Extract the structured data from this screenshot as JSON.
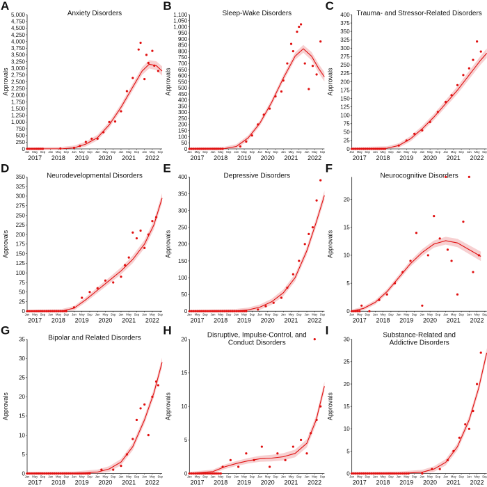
{
  "figure": {
    "month_labels": [
      "Jan",
      "May",
      "Sep"
    ],
    "colors": {
      "points": "#e01010",
      "trend": "#e01010",
      "band": "#e8787a",
      "axis": "#222222"
    }
  },
  "chart_data": [
    {
      "panel": "A",
      "type": "scatter",
      "title": "Anxiety Disorders",
      "ylabel": "Approvals",
      "ylim": [
        0,
        5000
      ],
      "yticks": [
        "0",
        "250",
        "500",
        "750",
        "1,000",
        "1,250",
        "1,500",
        "1,750",
        "2,000",
        "2,250",
        "2,500",
        "2,750",
        "3,000",
        "3,250",
        "3,500",
        "3,750",
        "4,000",
        "4,250",
        "4,500",
        "4,750",
        "5,000"
      ],
      "years": [
        "2017",
        "2018",
        "2019",
        "2020",
        "2021",
        "2022"
      ],
      "x": [
        "2017-09",
        "2018-06",
        "2019-01",
        "2019-04",
        "2019-07",
        "2019-10",
        "2020-01",
        "2020-04",
        "2020-07",
        "2020-10",
        "2021-01",
        "2021-04",
        "2021-07",
        "2021-10",
        "2021-11",
        "2022-01",
        "2022-02",
        "2022-03",
        "2022-05",
        "2022-06",
        "2022-08"
      ],
      "y": [
        0,
        10,
        40,
        110,
        260,
        380,
        380,
        620,
        1000,
        1020,
        1400,
        2150,
        2640,
        3700,
        3950,
        2600,
        3500,
        3200,
        3650,
        3100,
        2900
      ],
      "trend": [
        [
          2017.0,
          0
        ],
        [
          2018.5,
          5
        ],
        [
          2019.0,
          40
        ],
        [
          2019.5,
          180
        ],
        [
          2020.0,
          420
        ],
        [
          2020.5,
          900
        ],
        [
          2021.0,
          1550
        ],
        [
          2021.5,
          2300
        ],
        [
          2021.9,
          2900
        ],
        [
          2022.2,
          3150
        ],
        [
          2022.5,
          3100
        ],
        [
          2022.75,
          2900
        ]
      ]
    },
    {
      "panel": "B",
      "type": "scatter",
      "title": "Sleep-Wake Disorders",
      "ylabel": "Approvals",
      "ylim": [
        0,
        1100
      ],
      "yticks": [
        "0",
        "50",
        "100",
        "150",
        "200",
        "250",
        "300",
        "350",
        "400",
        "450",
        "500",
        "550",
        "600",
        "650",
        "700",
        "750",
        "800",
        "850",
        "900",
        "950",
        "1,000",
        "1,050",
        "1,100"
      ],
      "years": [
        "2017",
        "2018",
        "2019",
        "2020",
        "2021",
        "2022"
      ],
      "x": [
        "2018-06",
        "2019-03",
        "2019-06",
        "2019-09",
        "2019-12",
        "2020-03",
        "2020-06",
        "2020-09",
        "2020-12",
        "2021-01",
        "2021-03",
        "2021-05",
        "2021-06",
        "2021-08",
        "2021-09",
        "2021-10",
        "2021-12",
        "2022-02",
        "2022-04",
        "2022-06",
        "2022-08"
      ],
      "y": [
        0,
        20,
        60,
        110,
        200,
        280,
        330,
        430,
        470,
        560,
        700,
        860,
        800,
        960,
        1000,
        1020,
        700,
        490,
        680,
        610,
        880
      ],
      "trend": [
        [
          2017.0,
          0
        ],
        [
          2018.5,
          2
        ],
        [
          2019.0,
          20
        ],
        [
          2019.5,
          90
        ],
        [
          2020.0,
          210
        ],
        [
          2020.5,
          380
        ],
        [
          2021.0,
          580
        ],
        [
          2021.5,
          760
        ],
        [
          2021.85,
          820
        ],
        [
          2022.2,
          760
        ],
        [
          2022.5,
          660
        ],
        [
          2022.75,
          590
        ]
      ]
    },
    {
      "panel": "C",
      "type": "scatter",
      "title": "Trauma- and Stressor-Related Disorders",
      "ylabel": "Approvals",
      "ylim": [
        0,
        400
      ],
      "yticks": [
        "0",
        "25",
        "50",
        "75",
        "100",
        "125",
        "150",
        "175",
        "200",
        "225",
        "250",
        "275",
        "300",
        "325",
        "350",
        "375",
        "400"
      ],
      "years": [
        "2017",
        "2018",
        "2019",
        "2020",
        "2021",
        "2022"
      ],
      "x": [
        "2018-06",
        "2019-01",
        "2019-05",
        "2019-09",
        "2020-01",
        "2020-05",
        "2020-09",
        "2021-01",
        "2021-04",
        "2021-07",
        "2021-10",
        "2022-01",
        "2022-03",
        "2022-05",
        "2022-07"
      ],
      "y": [
        0,
        10,
        25,
        45,
        55,
        80,
        110,
        140,
        160,
        190,
        220,
        240,
        265,
        320,
        290
      ],
      "trend": [
        [
          2017.0,
          0
        ],
        [
          2018.5,
          2
        ],
        [
          2019.0,
          10
        ],
        [
          2019.5,
          30
        ],
        [
          2020.0,
          60
        ],
        [
          2020.5,
          95
        ],
        [
          2021.0,
          135
        ],
        [
          2021.5,
          175
        ],
        [
          2022.0,
          220
        ],
        [
          2022.5,
          265
        ],
        [
          2022.75,
          285
        ]
      ]
    },
    {
      "panel": "D",
      "type": "scatter",
      "title": "Neurodevelopmental Disorders",
      "ylabel": "Approvals",
      "ylim": [
        0,
        350
      ],
      "yticks": [
        "0",
        "25",
        "50",
        "75",
        "100",
        "125",
        "150",
        "175",
        "200",
        "225",
        "250",
        "275",
        "300",
        "325",
        "350"
      ],
      "years": [
        "2017",
        "2018",
        "2019",
        "2020",
        "2021",
        "2022"
      ],
      "x": [
        "2018-09",
        "2019-01",
        "2019-05",
        "2019-09",
        "2020-01",
        "2020-05",
        "2020-09",
        "2021-01",
        "2021-03",
        "2021-05",
        "2021-07",
        "2021-09",
        "2021-11",
        "2022-01",
        "2022-03",
        "2022-05",
        "2022-07"
      ],
      "y": [
        0,
        10,
        35,
        50,
        60,
        80,
        75,
        90,
        120,
        140,
        205,
        190,
        210,
        165,
        200,
        235,
        245
      ],
      "trend": [
        [
          2017.0,
          0
        ],
        [
          2018.5,
          1
        ],
        [
          2019.0,
          8
        ],
        [
          2019.5,
          30
        ],
        [
          2020.0,
          55
        ],
        [
          2020.5,
          80
        ],
        [
          2021.0,
          105
        ],
        [
          2021.5,
          135
        ],
        [
          2022.0,
          175
        ],
        [
          2022.4,
          225
        ],
        [
          2022.75,
          295
        ]
      ]
    },
    {
      "panel": "E",
      "type": "scatter",
      "title": "Depressive Disorders",
      "ylabel": "Approvals",
      "ylim": [
        0,
        400
      ],
      "yticks": [
        "0",
        "50",
        "100",
        "150",
        "200",
        "250",
        "300",
        "350",
        "400"
      ],
      "years": [
        "2017",
        "2018",
        "2019",
        "2020",
        "2021",
        "2022"
      ],
      "x": [
        "2019-06",
        "2019-12",
        "2020-04",
        "2020-08",
        "2020-12",
        "2021-03",
        "2021-06",
        "2021-09",
        "2021-12",
        "2022-02",
        "2022-04",
        "2022-06",
        "2022-08"
      ],
      "y": [
        0,
        5,
        15,
        25,
        40,
        70,
        110,
        150,
        200,
        230,
        250,
        330,
        390
      ],
      "trend": [
        [
          2017.0,
          0
        ],
        [
          2019.0,
          1
        ],
        [
          2019.5,
          4
        ],
        [
          2020.0,
          12
        ],
        [
          2020.5,
          28
        ],
        [
          2021.0,
          55
        ],
        [
          2021.5,
          100
        ],
        [
          2022.0,
          180
        ],
        [
          2022.4,
          265
        ],
        [
          2022.75,
          345
        ]
      ]
    },
    {
      "panel": "F",
      "type": "scatter",
      "title": "Neurocognitive Disorders",
      "ylabel": "Approvals",
      "ylim": [
        0,
        24
      ],
      "yticks": [
        "0",
        "5",
        "10",
        "15",
        "20"
      ],
      "years": [
        "2017",
        "2018",
        "2019",
        "2020",
        "2021",
        "2022"
      ],
      "x": [
        "2017-06",
        "2017-10",
        "2018-03",
        "2018-07",
        "2018-11",
        "2019-03",
        "2019-07",
        "2019-10",
        "2020-01",
        "2020-04",
        "2020-07",
        "2020-10",
        "2021-01",
        "2021-02",
        "2021-04",
        "2021-07",
        "2021-10",
        "2022-01",
        "2022-03",
        "2022-06"
      ],
      "y": [
        1,
        0,
        2,
        3,
        5,
        7,
        9,
        14,
        1,
        10,
        17,
        13,
        24,
        11,
        9,
        3,
        16,
        24,
        7,
        10
      ],
      "trend": [
        [
          2017.0,
          0
        ],
        [
          2017.5,
          0.5
        ],
        [
          2018.0,
          1.6
        ],
        [
          2018.5,
          3.5
        ],
        [
          2019.0,
          6
        ],
        [
          2019.5,
          8.5
        ],
        [
          2020.0,
          10.5
        ],
        [
          2020.5,
          12
        ],
        [
          2021.0,
          12.6
        ],
        [
          2021.5,
          12.2
        ],
        [
          2022.0,
          11
        ],
        [
          2022.5,
          9.8
        ]
      ]
    },
    {
      "panel": "G",
      "type": "scatter",
      "title": "Bipolar and Related Disorders",
      "ylabel": "Approvals",
      "ylim": [
        0,
        35
      ],
      "yticks": [
        "0",
        "5",
        "10",
        "15",
        "20",
        "25",
        "30",
        "35"
      ],
      "years": [
        "2017",
        "2018",
        "2019",
        "2020",
        "2021",
        "2022"
      ],
      "x": [
        "2019-09",
        "2020-03",
        "2020-09",
        "2021-01",
        "2021-04",
        "2021-07",
        "2021-09",
        "2021-11",
        "2022-01",
        "2022-03",
        "2022-05",
        "2022-07",
        "2022-08"
      ],
      "y": [
        0,
        1,
        1,
        2,
        5,
        9,
        14,
        17,
        18,
        10,
        20,
        24,
        23
      ],
      "trend": [
        [
          2017.0,
          0
        ],
        [
          2019.0,
          0
        ],
        [
          2020.0,
          0.4
        ],
        [
          2020.5,
          1.2
        ],
        [
          2021.0,
          3
        ],
        [
          2021.5,
          7
        ],
        [
          2022.0,
          14
        ],
        [
          2022.4,
          21
        ],
        [
          2022.75,
          29
        ]
      ]
    },
    {
      "panel": "H",
      "type": "scatter",
      "title": "Disruptive, Impulse-Control, and Conduct Disorders",
      "ylabel": "Approvals",
      "ylim": [
        0,
        20
      ],
      "yticks": [
        "0",
        "5",
        "10",
        "15",
        "20"
      ],
      "years": [
        "2017",
        "2018",
        "2019",
        "2020",
        "2021",
        "2022"
      ],
      "x": [
        "2018-06",
        "2018-10",
        "2019-02",
        "2019-06",
        "2019-10",
        "2020-02",
        "2020-06",
        "2020-10",
        "2021-02",
        "2021-06",
        "2021-10",
        "2022-01",
        "2022-03",
        "2022-05",
        "2022-06",
        "2022-08"
      ],
      "y": [
        1,
        2,
        1,
        3,
        2,
        4,
        1,
        3,
        2,
        4,
        5,
        3,
        6,
        20,
        8,
        10
      ],
      "trend": [
        [
          2017.0,
          0
        ],
        [
          2018.0,
          0.3
        ],
        [
          2018.5,
          1
        ],
        [
          2019.0,
          1.5
        ],
        [
          2019.5,
          1.9
        ],
        [
          2020.0,
          2.2
        ],
        [
          2020.5,
          2.3
        ],
        [
          2021.0,
          2.5
        ],
        [
          2021.5,
          3
        ],
        [
          2022.0,
          4.5
        ],
        [
          2022.4,
          8
        ],
        [
          2022.75,
          13
        ]
      ]
    },
    {
      "panel": "I",
      "type": "scatter",
      "title": "Substance-Related and Addictive Disorders",
      "ylabel": "Approvals",
      "ylim": [
        0,
        30
      ],
      "yticks": [
        "0",
        "5",
        "10",
        "15",
        "20",
        "25",
        "30"
      ],
      "years": [
        "2017",
        "2018",
        "2019",
        "2020",
        "2021",
        "2022"
      ],
      "x": [
        "2019-06",
        "2020-01",
        "2020-06",
        "2020-10",
        "2021-02",
        "2021-05",
        "2021-08",
        "2021-11",
        "2022-01",
        "2022-03",
        "2022-05",
        "2022-07"
      ],
      "y": [
        0,
        0,
        1,
        1,
        3,
        5,
        8,
        11,
        10,
        14,
        20,
        27
      ],
      "trend": [
        [
          2017.0,
          0
        ],
        [
          2019.0,
          0
        ],
        [
          2020.0,
          0.3
        ],
        [
          2020.5,
          1
        ],
        [
          2021.0,
          2.5
        ],
        [
          2021.5,
          6
        ],
        [
          2022.0,
          12
        ],
        [
          2022.4,
          19
        ],
        [
          2022.75,
          27
        ]
      ]
    }
  ]
}
